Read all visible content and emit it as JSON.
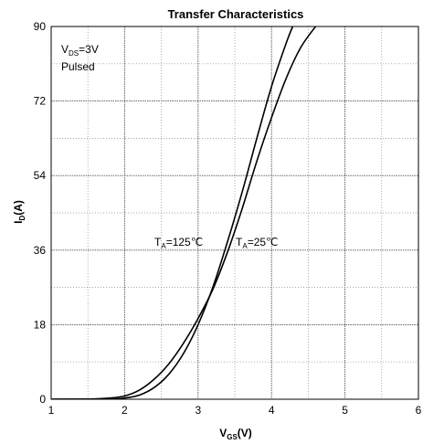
{
  "chart_data": {
    "type": "line",
    "title": "Transfer Characteristics",
    "xlabel": {
      "main": "V",
      "sub": "GS",
      "tail": "(V)"
    },
    "ylabel": {
      "main": "I",
      "sub": "D",
      "tail": "(A)"
    },
    "xlim": [
      1,
      6
    ],
    "ylim": [
      0,
      90
    ],
    "x_ticks": [
      1,
      2,
      3,
      4,
      5,
      6
    ],
    "y_ticks": [
      0,
      18,
      36,
      54,
      72,
      90
    ],
    "grid": true,
    "grid_style": "dotted minor lines at every half unit, solid-dotted major lines",
    "series": [
      {
        "name": "TA=125℃",
        "x": [
          1.0,
          1.5,
          1.8,
          2.0,
          2.2,
          2.4,
          2.6,
          2.8,
          3.0,
          3.2,
          3.4,
          3.6,
          3.8,
          4.0,
          4.2,
          4.4,
          4.6
        ],
        "y": [
          0,
          0.05,
          0.3,
          0.8,
          2.2,
          4.8,
          8.5,
          13.5,
          19.5,
          26.5,
          35.5,
          46,
          57.5,
          68,
          77.5,
          85,
          90
        ]
      },
      {
        "name": "TA=25℃",
        "x": [
          1.0,
          1.8,
          2.0,
          2.2,
          2.4,
          2.6,
          2.8,
          3.0,
          3.2,
          3.4,
          3.6,
          3.8,
          4.0,
          4.2,
          4.3,
          4.4
        ],
        "y": [
          0,
          0.05,
          0.3,
          1.0,
          2.8,
          6.0,
          11.0,
          18.0,
          27.0,
          38.0,
          50.0,
          63.0,
          75.5,
          86.0,
          90.5,
          94.5
        ]
      }
    ],
    "annotations": {
      "condition_main": "V",
      "condition_sub": "DS",
      "condition_tail": "=3V",
      "pulsed": "Pulsed",
      "label_125": {
        "main": "T",
        "sub": "A",
        "tail": "=125℃"
      },
      "label_25": {
        "main": "T",
        "sub": "A",
        "tail": "=25℃"
      }
    }
  }
}
